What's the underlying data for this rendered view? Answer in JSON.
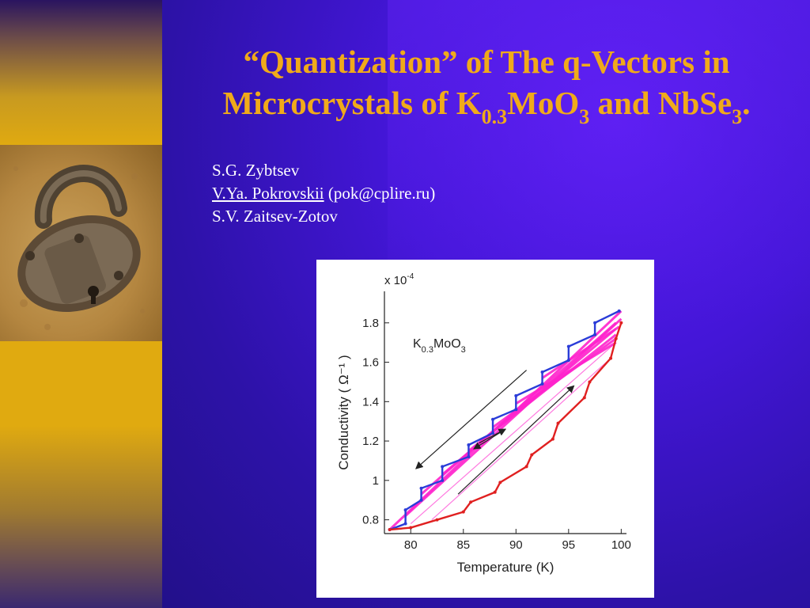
{
  "slide": {
    "title": {
      "line1": "“Quantization” of The q-Vectors in",
      "line2_a": "Microcrystals of K",
      "line2_sub1": "0.3",
      "line2_b": "MoO",
      "line2_sub2": "3",
      "line2_c": " and NbSe",
      "line2_sub3": "3",
      "line2_d": "."
    },
    "authors": {
      "a1": "S.G. Zybtsev",
      "a2_name": "V.Ya. Pokrovskii",
      "a2_email": " (pok@cplire.ru)",
      "a3": "S.V. Zaitsev-Zotov"
    },
    "colors": {
      "title": "#f0aa1a",
      "authors": "#ffffff",
      "background": "#3a14c8",
      "sidebar": "#e0aa10",
      "cooling_series": "#2a3cd8",
      "heating_series": "#e02020",
      "fan_lines": "#ff22cc"
    }
  },
  "chart_data": {
    "type": "line",
    "xlabel": "Temperature (K)",
    "ylabel": "Conductivity ( Ω⁻¹ )",
    "y_multiplier": "x 10",
    "y_multiplier_exp": "-4",
    "annotation_main": "K",
    "annotation_sub1": "0.3",
    "annotation_mid": "MoO",
    "annotation_sub2": "3",
    "xlim": [
      77.5,
      100.5
    ],
    "ylim": [
      0.73,
      1.96
    ],
    "xticks": [
      "80",
      "85",
      "90",
      "95",
      "100"
    ],
    "yticks": [
      "0.8",
      "1",
      "1.2",
      "1.4",
      "1.6",
      "1.8"
    ],
    "series": [
      {
        "color": "#2a3cd8",
        "x": [
          78.0,
          79.5,
          79.5,
          81.0,
          81.0,
          83.0,
          83.0,
          85.5,
          85.5,
          87.8,
          87.8,
          90.0,
          90.0,
          92.5,
          92.5,
          95.0,
          95.0,
          97.5,
          97.5,
          99.8
        ],
        "y": [
          0.75,
          0.78,
          0.85,
          0.9,
          0.96,
          1.0,
          1.07,
          1.12,
          1.18,
          1.24,
          1.31,
          1.36,
          1.43,
          1.49,
          1.55,
          1.61,
          1.68,
          1.74,
          1.8,
          1.86
        ]
      },
      {
        "color": "#e02020",
        "x": [
          78.0,
          80.0,
          82.5,
          85.0,
          85.7,
          88.0,
          88.5,
          91.0,
          91.5,
          93.5,
          94.0,
          96.5,
          97.0,
          99.0,
          99.5,
          100.0
        ],
        "y": [
          0.75,
          0.76,
          0.8,
          0.84,
          0.89,
          0.94,
          0.99,
          1.07,
          1.13,
          1.21,
          1.29,
          1.42,
          1.5,
          1.62,
          1.72,
          1.8
        ]
      }
    ],
    "fan_lines": [
      {
        "x": [
          78,
          100
        ],
        "y": [
          0.75,
          1.86
        ]
      },
      {
        "x": [
          79.5,
          100
        ],
        "y": [
          0.82,
          1.82
        ]
      },
      {
        "x": [
          81,
          99.5
        ],
        "y": [
          0.93,
          1.8
        ]
      },
      {
        "x": [
          83,
          99.5
        ],
        "y": [
          1.03,
          1.77
        ]
      },
      {
        "x": [
          85.5,
          99.5
        ],
        "y": [
          1.15,
          1.74
        ]
      },
      {
        "x": [
          87.8,
          99.5
        ],
        "y": [
          1.27,
          1.72
        ]
      },
      {
        "x": [
          90,
          99.5
        ],
        "y": [
          1.39,
          1.7
        ]
      },
      {
        "x": [
          92.5,
          99.8
        ],
        "y": [
          1.52,
          1.78
        ]
      },
      {
        "x": [
          80,
          99.5
        ],
        "y": [
          0.78,
          1.7
        ]
      },
      {
        "x": [
          82,
          99.0
        ],
        "y": [
          0.8,
          1.62
        ]
      }
    ],
    "arrows": [
      {
        "from": [
          91.0,
          1.56
        ],
        "to": [
          80.5,
          1.06
        ]
      },
      {
        "from": [
          84.5,
          0.93
        ],
        "to": [
          95.5,
          1.48
        ]
      },
      {
        "from": [
          86.5,
          1.19
        ],
        "to": [
          89.0,
          1.26
        ]
      },
      {
        "from": [
          89.0,
          1.26
        ],
        "to": [
          86.0,
          1.16
        ]
      }
    ]
  }
}
